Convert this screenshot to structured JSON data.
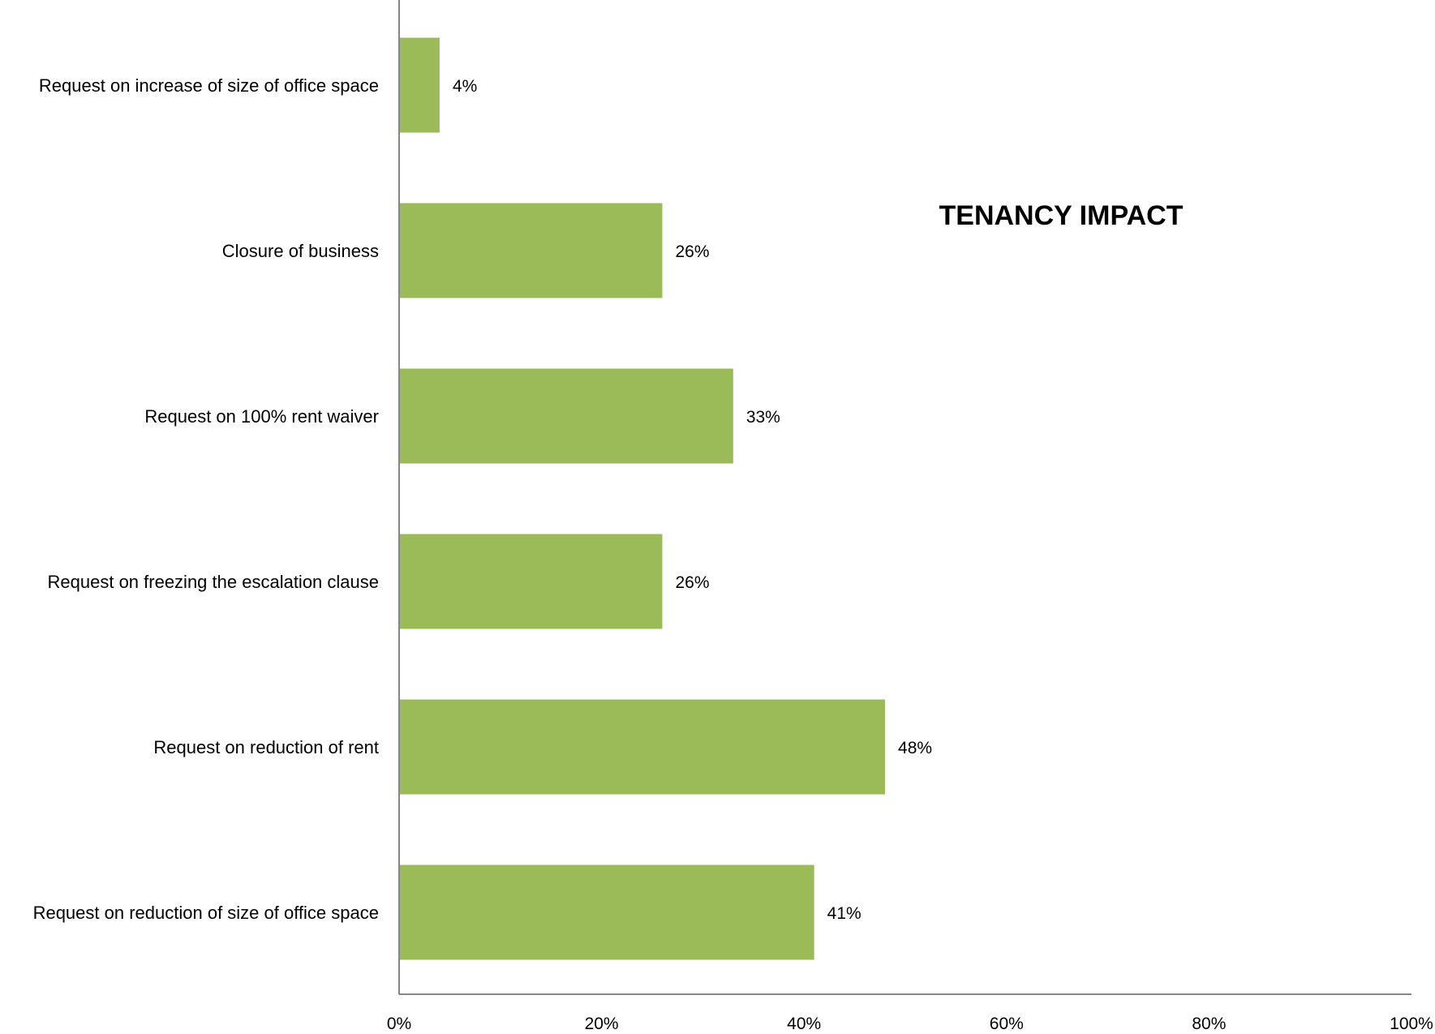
{
  "chart_data": {
    "type": "bar",
    "orientation": "horizontal",
    "title": "TENANCY IMPACT",
    "categories": [
      "Request on increase of size of office space",
      "Closure of business",
      "Request on 100% rent waiver",
      "Request on freezing the escalation clause",
      "Request on reduction of rent",
      "Request on reduction of size of office space"
    ],
    "values": [
      4,
      26,
      33,
      26,
      48,
      41
    ],
    "data_labels": [
      "4%",
      "26%",
      "33%",
      "26%",
      "48%",
      "41%"
    ],
    "xlim": [
      0,
      100
    ],
    "x_ticks": [
      0,
      20,
      40,
      60,
      80,
      100
    ],
    "x_tick_labels": [
      "0%",
      "20%",
      "40%",
      "60%",
      "80%",
      "100%"
    ],
    "xlabel": "",
    "ylabel": "",
    "grid": false,
    "legend": "none",
    "bar_color": "#9BBB59",
    "axis_color": "#868686"
  }
}
